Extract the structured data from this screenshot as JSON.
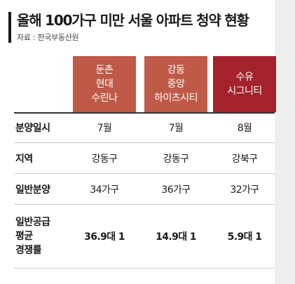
{
  "title": "올해 100가구 미만 서울 아파트 청약 현황",
  "source": "자료 : 한국부동산원",
  "columns": [
    {
      "lines": [
        "둔촌",
        "현대",
        "수린나"
      ],
      "color": "#c05a48"
    },
    {
      "lines": [
        "강동",
        "중앙",
        "하이츠시티"
      ],
      "color": "#c05a48"
    },
    {
      "lines": [
        "수유",
        "시그니티"
      ],
      "color": "#a3222b"
    }
  ],
  "rows": [
    {
      "label": [
        "분양일시"
      ],
      "values": [
        "7월",
        "7월",
        "8월"
      ],
      "bold": false
    },
    {
      "label": [
        "지역"
      ],
      "values": [
        "강동구",
        "강동구",
        "강북구"
      ],
      "bold": false
    },
    {
      "label": [
        "일반분양"
      ],
      "values": [
        "34가구",
        "36가구",
        "32가구"
      ],
      "bold": false
    },
    {
      "label": [
        "일반공급",
        "평균",
        "경쟁률"
      ],
      "values": [
        "36.9대 1",
        "14.9대 1",
        "5.9대 1"
      ],
      "bold": true
    }
  ]
}
